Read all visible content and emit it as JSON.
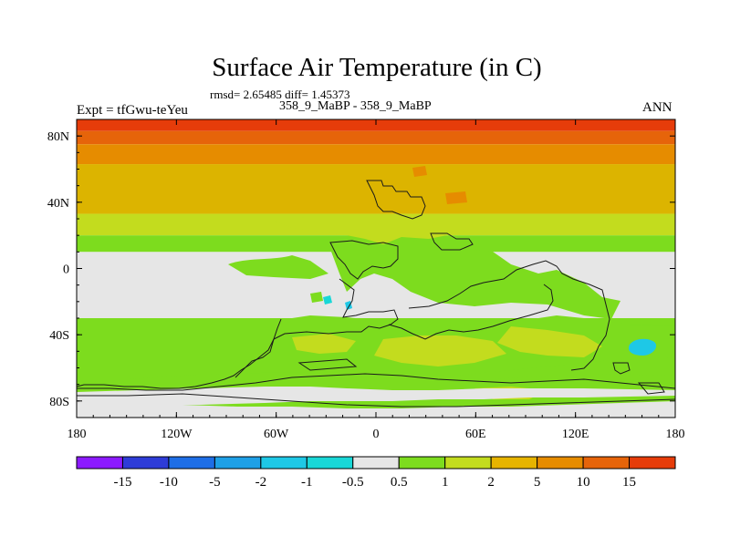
{
  "title": "Surface Air Temperature (in C)",
  "subtitle_stats": "rmsd= 2.65485 diff= 1.45373",
  "subtitle_runs": "358_9_MaBP - 358_9_MaBP",
  "experiment_label": "Expt = tfGwu-teYeu",
  "season_label": "ANN",
  "map": {
    "projection": "cylindrical-equidistant",
    "lon_range": [
      -180,
      180
    ],
    "lat_range": [
      -90,
      90
    ],
    "x_ticks": [
      {
        "lon": -180,
        "label": "180"
      },
      {
        "lon": -120,
        "label": "120W"
      },
      {
        "lon": -60,
        "label": "60W"
      },
      {
        "lon": 0,
        "label": "0"
      },
      {
        "lon": 60,
        "label": "60E"
      },
      {
        "lon": 120,
        "label": "120E"
      },
      {
        "lon": 180,
        "label": "180"
      }
    ],
    "y_ticks": [
      {
        "lat": 80,
        "label": "80N"
      },
      {
        "lat": 40,
        "label": "40N"
      },
      {
        "lat": 0,
        "label": "0"
      },
      {
        "lat": -40,
        "label": "40S"
      },
      {
        "lat": -80,
        "label": "80S"
      }
    ],
    "zonal_bands": [
      {
        "lat_top": 90,
        "lat_bottom": 83,
        "level": "15+"
      },
      {
        "lat_top": 83,
        "lat_bottom": 75,
        "level": "10 to 15"
      },
      {
        "lat_top": 75,
        "lat_bottom": 63,
        "level": "5 to 10"
      },
      {
        "lat_top": 63,
        "lat_bottom": 33,
        "level": "2 to 5"
      },
      {
        "lat_top": 33,
        "lat_bottom": 20,
        "level": "1 to 2"
      },
      {
        "lat_top": 20,
        "lat_bottom": 10,
        "level": "0.5 to 1"
      },
      {
        "lat_top": 10,
        "lat_bottom": -30,
        "level": "-0.5 to 0.5"
      },
      {
        "lat_top": -30,
        "lat_bottom": -75,
        "level": "0.5 to 1"
      },
      {
        "lat_top": -75,
        "lat_bottom": -90,
        "level": "-0.5 to 0.5"
      }
    ]
  },
  "legend": {
    "colors": [
      "#8c1aff",
      "#2e3cd8",
      "#1e6ee6",
      "#1ea0e6",
      "#1ec8e6",
      "#19d7d7",
      "#e6e6e6",
      "#7ddc1e",
      "#c3dc1e",
      "#e6b400",
      "#e68c00",
      "#e6640a",
      "#e63c0a"
    ],
    "labels": [
      "-15",
      "-10",
      "-5",
      "-2",
      "-1",
      "-0.5",
      "0.5",
      "1",
      "2",
      "5",
      "10",
      "15"
    ]
  },
  "colors": {
    "ice_white": "#e6e6e6",
    "green": "#7ddc1e",
    "yellow_green": "#c3dc1e",
    "gold": "#dcb400",
    "orange": "#e68c00",
    "dark_orange": "#e6640a",
    "red": "#e63c0a",
    "cyan": "#1ec8e6",
    "teal": "#19d7d7"
  }
}
